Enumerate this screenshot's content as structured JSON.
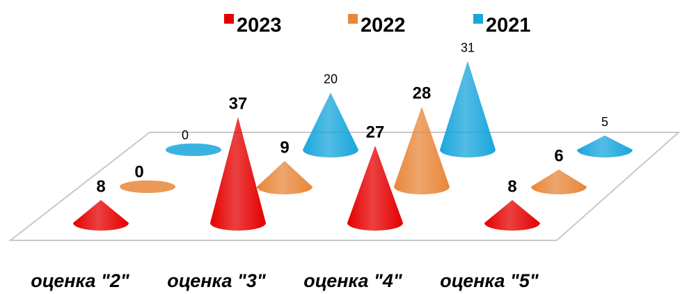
{
  "chart_data": {
    "type": "cone",
    "categories": [
      "оценка \"2\"",
      "оценка \"3\"",
      "оценка \"4\"",
      "оценка \"5\""
    ],
    "series": [
      {
        "name": "2023",
        "color": "#e50000",
        "values": [
          8,
          37,
          27,
          8
        ]
      },
      {
        "name": "2022",
        "color": "#e8873a",
        "values": [
          0,
          9,
          28,
          6
        ]
      },
      {
        "name": "2021",
        "color": "#19a6dc",
        "values": [
          0,
          20,
          31,
          5
        ]
      }
    ]
  }
}
